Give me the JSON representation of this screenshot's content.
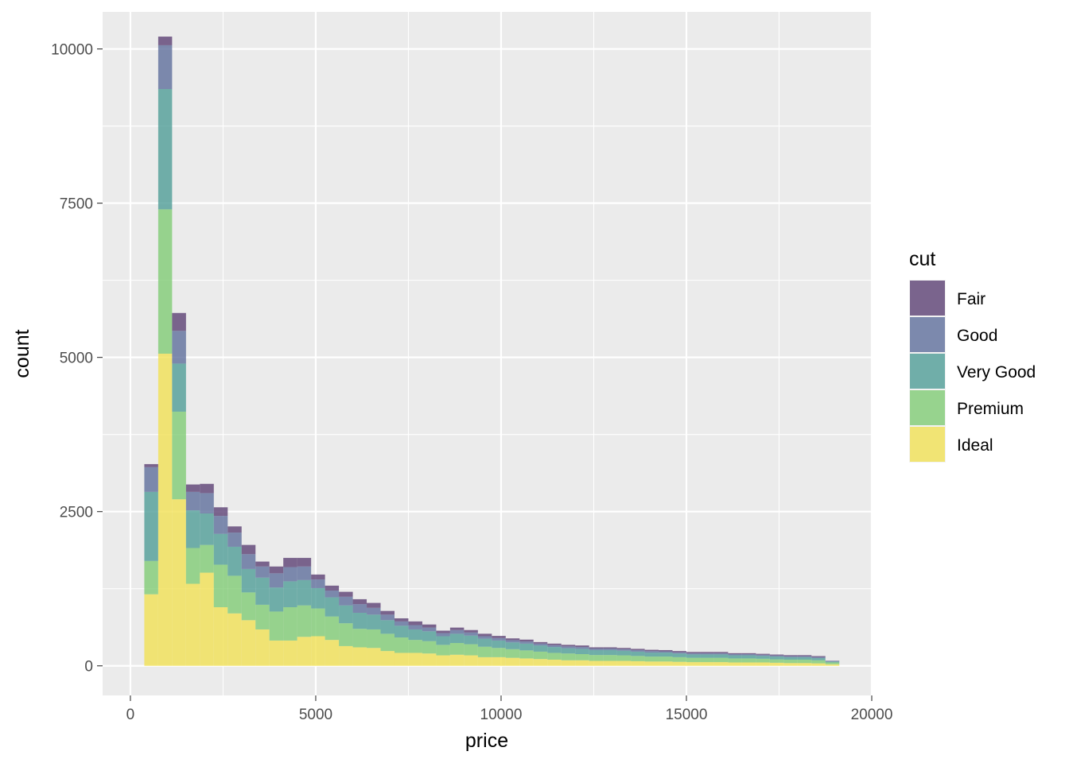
{
  "chart_data": {
    "type": "bar",
    "stacked": true,
    "bins": [
      "0-375",
      "375-750",
      "750-1125",
      "1125-1500",
      "1500-1875",
      "1875-2250",
      "2250-2625",
      "2625-3000",
      "3000-3375",
      "3375-3750",
      "3750-4125",
      "4125-4500",
      "4500-4875",
      "4875-5250",
      "5250-5625",
      "5625-6000",
      "6000-6375",
      "6375-6750",
      "6750-7125",
      "7125-7500",
      "7500-7875",
      "7875-8250",
      "8250-8625",
      "8625-9000",
      "9000-9375",
      "9375-9750",
      "9750-10125",
      "10125-10500",
      "10500-10875",
      "10875-11250",
      "11250-11625",
      "11625-12000",
      "12000-12375",
      "12375-12750",
      "12750-13125",
      "13125-13500",
      "13500-13875",
      "13875-14250",
      "14250-14625",
      "14625-15000",
      "15000-15375",
      "15375-15750",
      "15750-16125",
      "16125-16500",
      "16500-16875",
      "16875-17250",
      "17250-17625",
      "17625-18000",
      "18000-18375",
      "18375-18750",
      "18750-19125"
    ],
    "xlim": [
      -750,
      20000
    ],
    "ylim": [
      -480,
      10600
    ],
    "xlabel": "price",
    "ylabel": "count",
    "x_ticks": [
      "0",
      "5000",
      "10000",
      "15000",
      "20000"
    ],
    "y_ticks": [
      "0",
      "2500",
      "5000",
      "7500",
      "10000"
    ],
    "grid": true,
    "legend_title": "cut",
    "legend_position": "right",
    "series": [
      {
        "name": "Ideal",
        "color": "#F1E051",
        "values": [
          0,
          1160,
          5060,
          2700,
          1330,
          1510,
          950,
          850,
          740,
          590,
          410,
          410,
          470,
          480,
          420,
          320,
          300,
          290,
          240,
          210,
          210,
          200,
          170,
          180,
          170,
          140,
          140,
          130,
          120,
          110,
          100,
          90,
          90,
          80,
          80,
          80,
          75,
          70,
          70,
          65,
          60,
          60,
          60,
          55,
          55,
          55,
          50,
          45,
          45,
          40,
          25
        ]
      },
      {
        "name": "Premium",
        "color": "#7DCB72",
        "values": [
          0,
          540,
          2340,
          1420,
          580,
          450,
          690,
          610,
          450,
          400,
          470,
          540,
          510,
          450,
          380,
          370,
          300,
          300,
          280,
          250,
          210,
          200,
          170,
          190,
          180,
          170,
          150,
          140,
          130,
          120,
          110,
          110,
          100,
          95,
          95,
          90,
          85,
          80,
          80,
          75,
          70,
          70,
          70,
          65,
          65,
          60,
          55,
          55,
          55,
          50,
          30
        ]
      },
      {
        "name": "Very Good",
        "color": "#4B9B95",
        "values": [
          0,
          1120,
          1950,
          780,
          610,
          510,
          500,
          470,
          380,
          440,
          390,
          420,
          410,
          330,
          310,
          290,
          260,
          240,
          220,
          190,
          170,
          160,
          140,
          150,
          140,
          130,
          120,
          110,
          110,
          100,
          95,
          85,
          85,
          80,
          80,
          75,
          70,
          65,
          65,
          60,
          55,
          55,
          55,
          50,
          50,
          45,
          45,
          40,
          40,
          35,
          15
        ]
      },
      {
        "name": "Good",
        "color": "#5B6C9A",
        "values": [
          0,
          400,
          710,
          530,
          300,
          330,
          290,
          230,
          240,
          180,
          230,
          230,
          220,
          140,
          110,
          140,
          140,
          110,
          90,
          70,
          70,
          60,
          50,
          60,
          50,
          40,
          40,
          35,
          35,
          30,
          30,
          30,
          30,
          25,
          25,
          25,
          25,
          25,
          20,
          20,
          20,
          20,
          20,
          20,
          20,
          20,
          18,
          18,
          18,
          18,
          8
        ]
      },
      {
        "name": "Fair",
        "color": "#583C71",
        "values": [
          0,
          50,
          140,
          290,
          120,
          150,
          140,
          100,
          150,
          80,
          110,
          150,
          140,
          80,
          80,
          80,
          80,
          80,
          60,
          50,
          60,
          50,
          40,
          40,
          40,
          40,
          35,
          30,
          30,
          25,
          25,
          25,
          25,
          20,
          20,
          20,
          20,
          20,
          20,
          20,
          20,
          20,
          20,
          15,
          15,
          15,
          15,
          15,
          15,
          15,
          5
        ]
      }
    ]
  },
  "legend": {
    "title": "cut",
    "items": [
      {
        "label": "Fair",
        "color": "#583C71"
      },
      {
        "label": "Good",
        "color": "#5B6C9A"
      },
      {
        "label": "Very Good",
        "color": "#4B9B95"
      },
      {
        "label": "Premium",
        "color": "#7DCB72"
      },
      {
        "label": "Ideal",
        "color": "#F1E051"
      }
    ]
  },
  "colors": {
    "panel_background": "#EBEBEB",
    "grid_major": "#FFFFFF",
    "tick_text": "#4D4D4D"
  }
}
